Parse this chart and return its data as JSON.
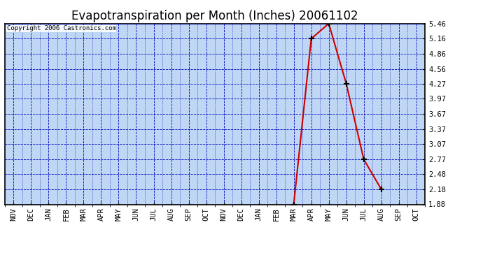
{
  "title": "Evapotranspiration per Month (Inches) 20061102",
  "copyright": "Copyright 2006 Castronics.com",
  "months": [
    "NOV",
    "DEC",
    "JAN",
    "FEB",
    "MAR",
    "APR",
    "MAY",
    "JUN",
    "JUL",
    "AUG",
    "SEP",
    "OCT",
    "NOV",
    "DEC",
    "JAN",
    "FEB",
    "MAR",
    "APR",
    "MAY",
    "JUN",
    "JUL",
    "AUG",
    "SEP",
    "OCT"
  ],
  "x_data": [
    16,
    17,
    18,
    19,
    20,
    21
  ],
  "y_data": [
    1.88,
    5.16,
    5.46,
    4.27,
    2.77,
    2.18
  ],
  "yticks": [
    1.88,
    2.18,
    2.48,
    2.77,
    3.07,
    3.37,
    3.67,
    3.97,
    4.27,
    4.56,
    4.86,
    5.16,
    5.46
  ],
  "ylim": [
    1.88,
    5.46
  ],
  "xlim": [
    -0.5,
    23.5
  ],
  "line_color": "#cc0000",
  "marker_color": "#000000",
  "bg_color": "#bfd7f5",
  "grid_color": "#0000bb",
  "title_fontsize": 12,
  "copyright_fontsize": 6.5,
  "tick_fontsize": 7.5,
  "frame_color": "#000000"
}
